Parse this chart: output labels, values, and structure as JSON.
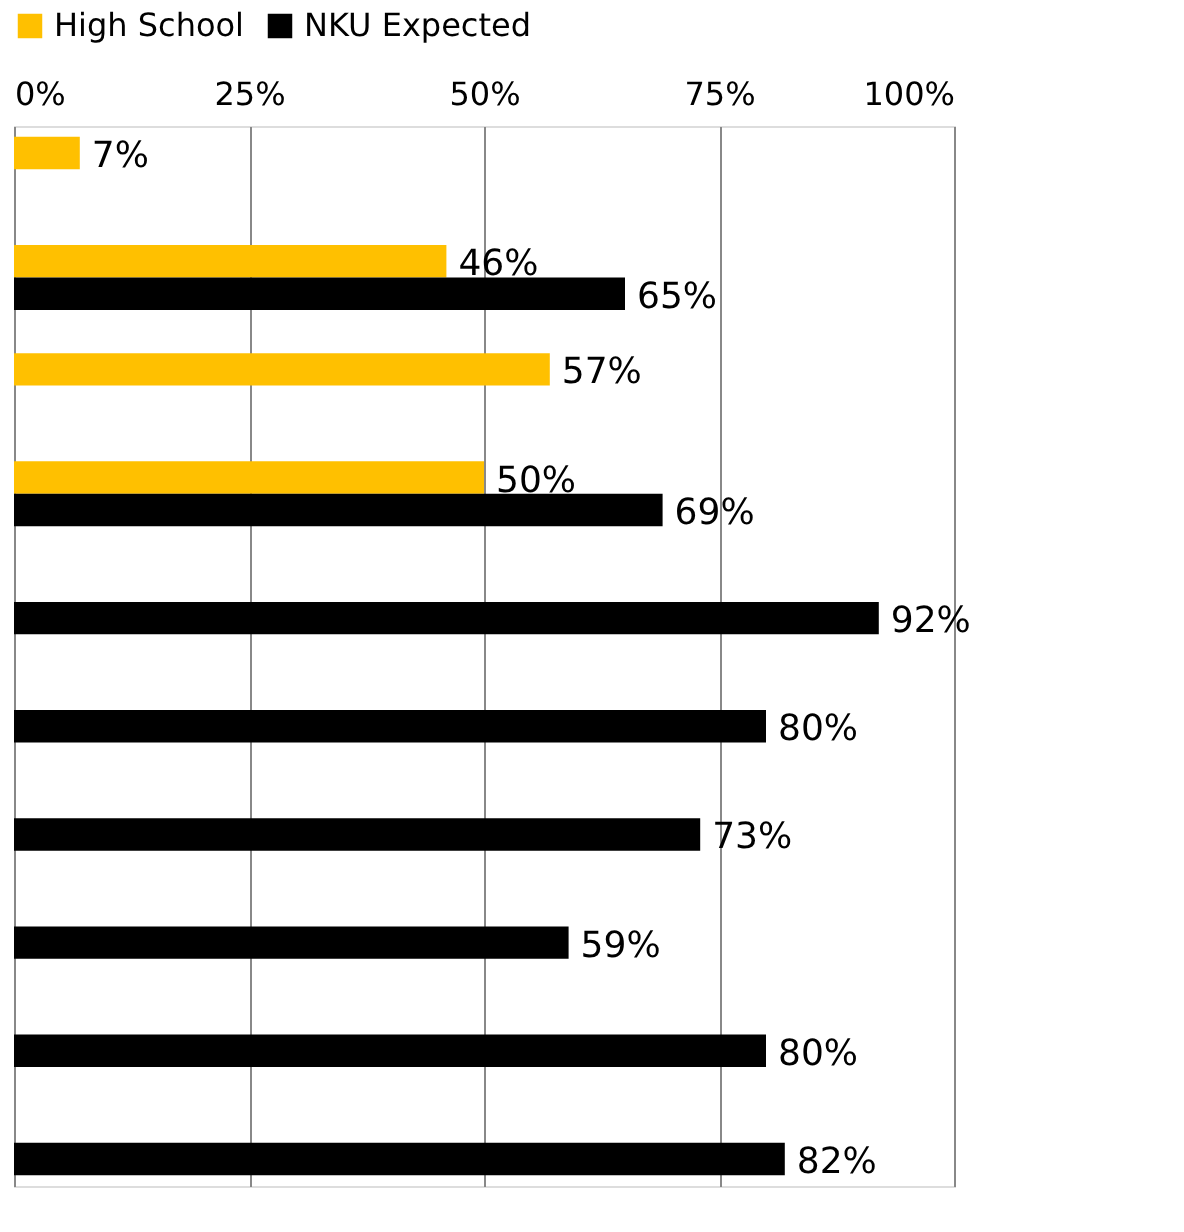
{
  "chart_data": {
    "type": "bar",
    "orientation": "horizontal",
    "categories": [
      null,
      null,
      null,
      null,
      null,
      null,
      null,
      null,
      null,
      null
    ],
    "series": [
      {
        "name": "High School",
        "color": "#ffc000",
        "values": [
          7,
          46,
          57,
          50,
          null,
          null,
          null,
          null,
          null,
          null
        ],
        "value_labels": [
          "7%",
          "46%",
          "57%",
          "50%",
          null,
          null,
          null,
          null,
          null,
          null
        ]
      },
      {
        "name": "NKU Expected",
        "color": "#000000",
        "values": [
          null,
          65,
          null,
          69,
          92,
          80,
          73,
          59,
          80,
          82
        ],
        "value_labels": [
          null,
          "65%",
          null,
          "69%",
          "92%",
          "80%",
          "73%",
          "59%",
          "80%",
          "82%"
        ]
      }
    ],
    "xlim": [
      0,
      100
    ],
    "xticks": [
      {
        "value": 0,
        "label": "0%"
      },
      {
        "value": 25,
        "label": "25%"
      },
      {
        "value": 50,
        "label": "50%"
      },
      {
        "value": 75,
        "label": "75%"
      },
      {
        "value": 100,
        "label": "100%"
      }
    ],
    "grid": "x",
    "legend": "top"
  }
}
